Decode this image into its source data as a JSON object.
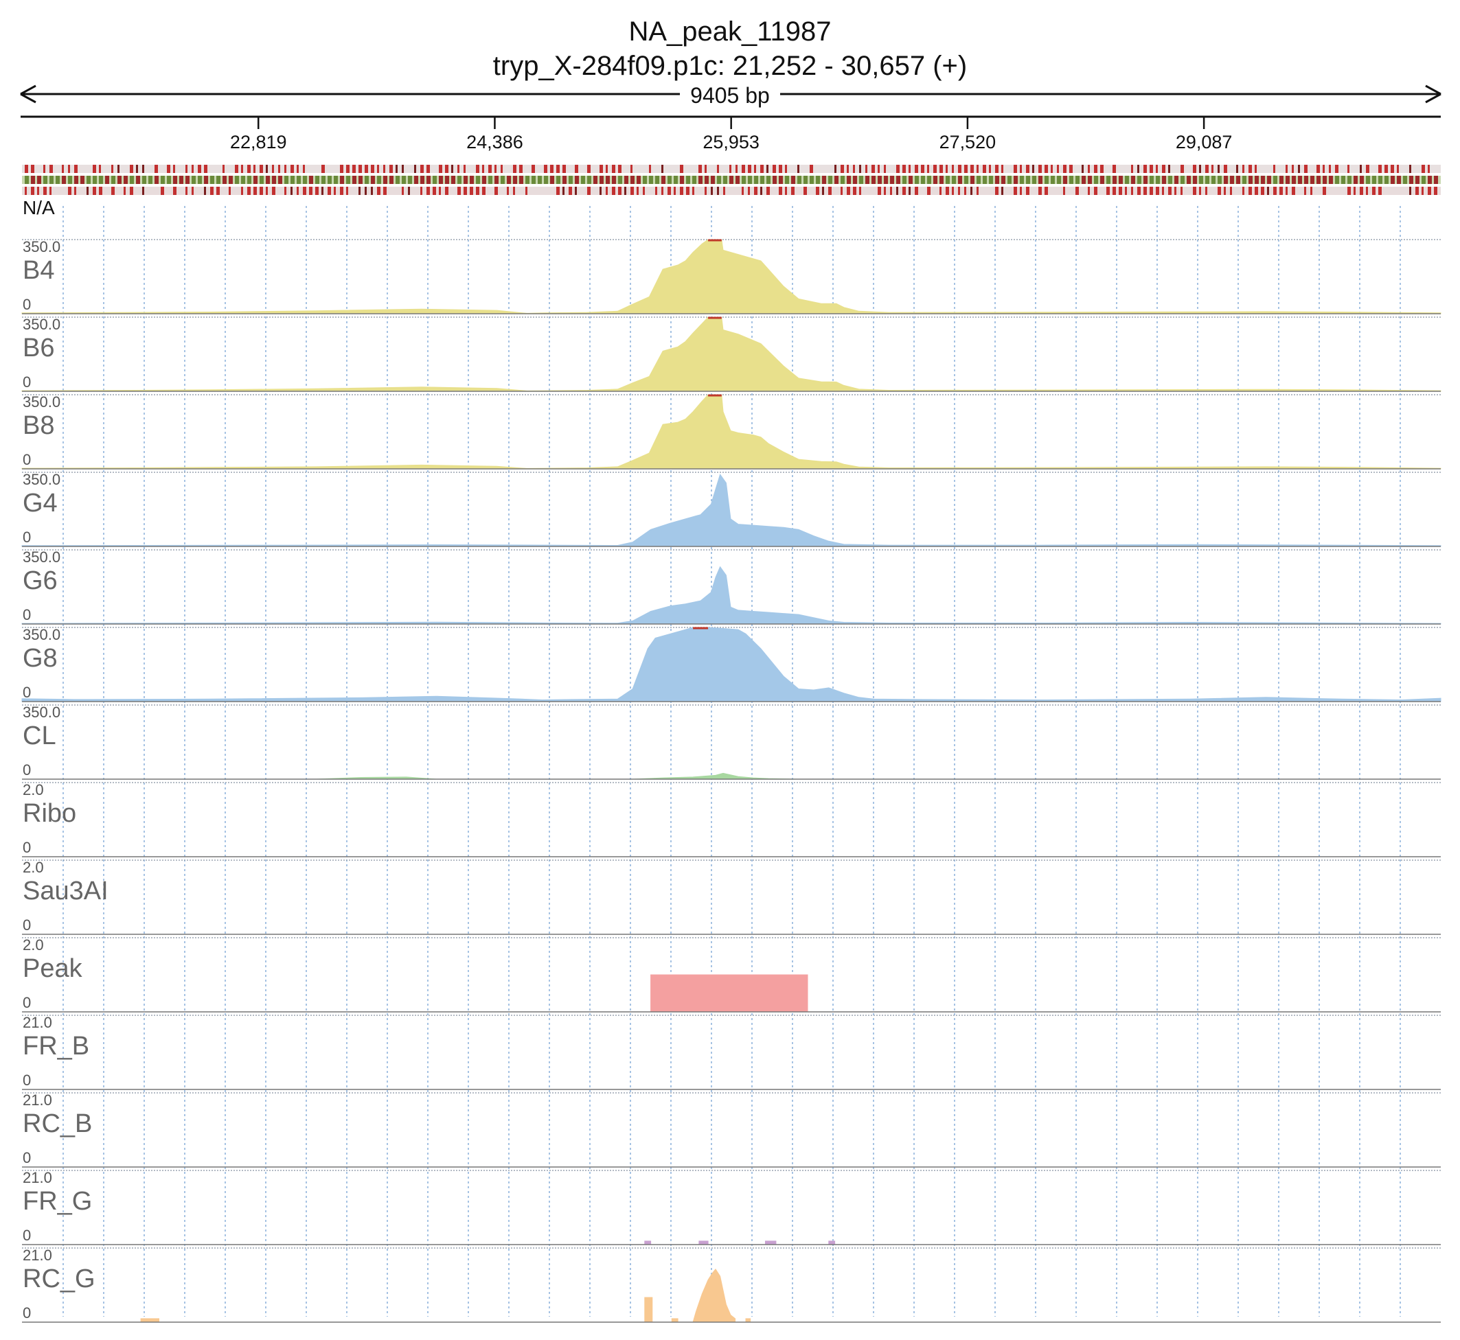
{
  "chart_data": {
    "type": "area",
    "title": "NA_peak_11987",
    "subtitle": "tryp_X-284f09.p1c: 21,252 - 30,657 (+)",
    "span_label": "9405 bp",
    "x_range": [
      21252,
      30657
    ],
    "x_ticks": [
      {
        "value": 22819,
        "label": "22,819"
      },
      {
        "value": 24386,
        "label": "24,386"
      },
      {
        "value": 25953,
        "label": "25,953"
      },
      {
        "value": 27520,
        "label": "27,520"
      },
      {
        "value": 29087,
        "label": "29,087"
      }
    ],
    "annotation_track_label": "N/A",
    "grid": true,
    "tracks": [
      {
        "name": "B4",
        "ymax_label": "350.0",
        "ymin_label": "0",
        "ylim": [
          0,
          350
        ],
        "color": "#e8e08c",
        "clip_color": "#c0392b",
        "x": [
          21252,
          22000,
          22500,
          23200,
          23900,
          24400,
          24600,
          24720,
          25000,
          25200,
          25300,
          25410,
          25500,
          25600,
          25650,
          25700,
          25760,
          25800,
          25890,
          25900,
          25950,
          26000,
          26050,
          26100,
          26150,
          26200,
          26300,
          26400,
          26550,
          26650,
          26700,
          26800,
          27000,
          28000,
          29500,
          30000,
          30657
        ],
        "y": [
          4,
          6,
          8,
          14,
          22,
          16,
          2,
          4,
          6,
          12,
          45,
          80,
          210,
          230,
          250,
          290,
          330,
          350,
          350,
          300,
          290,
          280,
          270,
          260,
          250,
          210,
          130,
          70,
          48,
          48,
          30,
          12,
          6,
          7,
          10,
          8,
          4
        ]
      },
      {
        "name": "B6",
        "ymax_label": "350.0",
        "ymin_label": "0",
        "ylim": [
          0,
          350
        ],
        "color": "#e8e08c",
        "clip_color": "#c0392b",
        "x": [
          21252,
          22000,
          22500,
          23200,
          23900,
          24400,
          24600,
          24720,
          25000,
          25200,
          25300,
          25410,
          25500,
          25600,
          25650,
          25700,
          25760,
          25800,
          25890,
          25900,
          25950,
          26000,
          26050,
          26100,
          26150,
          26200,
          26300,
          26400,
          26550,
          26650,
          26700,
          26800,
          27000,
          28000,
          29500,
          30000,
          30657
        ],
        "y": [
          3,
          5,
          7,
          12,
          20,
          14,
          2,
          3,
          5,
          10,
          40,
          70,
          190,
          210,
          235,
          275,
          320,
          350,
          350,
          290,
          280,
          270,
          255,
          240,
          225,
          190,
          120,
          62,
          45,
          44,
          28,
          10,
          5,
          6,
          9,
          7,
          3
        ]
      },
      {
        "name": "B8",
        "ymax_label": "350.0",
        "ymin_label": "0",
        "ylim": [
          0,
          350
        ],
        "color": "#e8e08c",
        "clip_color": "#c0392b",
        "x": [
          21252,
          22000,
          22500,
          23200,
          23900,
          24400,
          24600,
          24720,
          25000,
          25200,
          25300,
          25410,
          25500,
          25600,
          25650,
          25700,
          25760,
          25800,
          25890,
          25900,
          25950,
          26000,
          26050,
          26100,
          26150,
          26200,
          26300,
          26400,
          26550,
          26650,
          26700,
          26800,
          27000,
          28000,
          29500,
          30000,
          30657
        ],
        "y": [
          3,
          5,
          7,
          10,
          18,
          12,
          2,
          3,
          5,
          10,
          40,
          75,
          210,
          220,
          235,
          270,
          320,
          350,
          350,
          270,
          180,
          170,
          165,
          160,
          150,
          120,
          80,
          45,
          35,
          33,
          22,
          9,
          5,
          6,
          10,
          8,
          3
        ]
      },
      {
        "name": "G4",
        "ymax_label": "350.0",
        "ymin_label": "0",
        "ylim": [
          0,
          350
        ],
        "color": "#a4c8e8",
        "clip_color": "#c0392b",
        "x": [
          21252,
          22000,
          23000,
          24000,
          24800,
          25200,
          25300,
          25420,
          25550,
          25650,
          25750,
          25820,
          25850,
          25880,
          25920,
          25950,
          26000,
          26100,
          26200,
          26300,
          26400,
          26500,
          26600,
          26700,
          27000,
          28000,
          29000,
          30000,
          30657
        ],
        "y": [
          4,
          5,
          6,
          8,
          6,
          5,
          20,
          80,
          110,
          130,
          150,
          200,
          270,
          340,
          300,
          130,
          105,
          100,
          95,
          90,
          80,
          50,
          25,
          10,
          6,
          6,
          9,
          6,
          4
        ]
      },
      {
        "name": "G6",
        "ymax_label": "350.0",
        "ymin_label": "0",
        "ylim": [
          0,
          350
        ],
        "color": "#a4c8e8",
        "clip_color": "#c0392b",
        "x": [
          21252,
          22000,
          23000,
          24000,
          24800,
          25200,
          25300,
          25420,
          25550,
          25650,
          25750,
          25820,
          25850,
          25880,
          25920,
          25950,
          26000,
          26100,
          26200,
          26300,
          26400,
          26500,
          26600,
          26700,
          27000,
          28000,
          29000,
          30000,
          30657
        ],
        "y": [
          3,
          4,
          6,
          9,
          5,
          4,
          15,
          60,
          85,
          95,
          110,
          150,
          220,
          270,
          230,
          80,
          65,
          60,
          55,
          50,
          45,
          30,
          15,
          8,
          5,
          5,
          8,
          5,
          3
        ]
      },
      {
        "name": "G8",
        "ymax_label": "350.0",
        "ymin_label": "0",
        "ylim": [
          0,
          350
        ],
        "color": "#a4c8e8",
        "clip_color": "#c0392b",
        "x": [
          21252,
          21600,
          22500,
          23500,
          24000,
          24500,
          24700,
          24900,
          25200,
          25300,
          25400,
          25450,
          25600,
          25700,
          25800,
          25900,
          26000,
          26050,
          26150,
          26300,
          26400,
          26500,
          26600,
          26700,
          26800,
          26900,
          27200,
          28000,
          29000,
          29500,
          30000,
          30400,
          30657
        ],
        "y": [
          14,
          10,
          12,
          18,
          25,
          14,
          8,
          10,
          12,
          60,
          250,
          300,
          330,
          350,
          350,
          345,
          340,
          320,
          250,
          120,
          60,
          55,
          65,
          40,
          20,
          12,
          10,
          8,
          12,
          20,
          12,
          8,
          16
        ]
      },
      {
        "name": "CL",
        "ymax_label": "350.0",
        "ymin_label": "0",
        "ylim": [
          0,
          350
        ],
        "color": "#a8d8a0",
        "clip_color": "#c0392b",
        "x": [
          21252,
          23200,
          23500,
          23800,
          24000,
          25300,
          25500,
          25700,
          25850,
          25900,
          26000,
          26100,
          26200,
          26400,
          30657
        ],
        "y": [
          0,
          0,
          8,
          10,
          0,
          0,
          6,
          10,
          18,
          28,
          12,
          6,
          3,
          0,
          0
        ]
      },
      {
        "name": "Ribo",
        "ymax_label": "2.0",
        "ymin_label": "0",
        "ylim": [
          0,
          2
        ],
        "color": "#cccccc",
        "clip_color": "#c0392b",
        "x": [],
        "y": []
      },
      {
        "name": "Sau3AI",
        "ymax_label": "2.0",
        "ymin_label": "0",
        "ylim": [
          0,
          2
        ],
        "color": "#cccccc",
        "clip_color": "#c0392b",
        "x": [],
        "y": []
      },
      {
        "name": "Peak",
        "ymax_label": "2.0",
        "ymin_label": "0",
        "ylim": [
          0,
          2
        ],
        "color": "#f4a0a0",
        "clip_color": "#c0392b",
        "x": [
          25420,
          25420,
          26460,
          26460
        ],
        "y": [
          0,
          1,
          1,
          0
        ]
      },
      {
        "name": "FR_B",
        "ymax_label": "21.0",
        "ymin_label": "0",
        "ylim": [
          0,
          21
        ],
        "color": "#cccccc",
        "clip_color": "#c0392b",
        "x": [],
        "y": []
      },
      {
        "name": "RC_B",
        "ymax_label": "21.0",
        "ymin_label": "0",
        "ylim": [
          0,
          21
        ],
        "color": "#cccccc",
        "clip_color": "#c0392b",
        "x": [],
        "y": []
      },
      {
        "name": "FR_G",
        "ymax_label": "21.0",
        "ymin_label": "0",
        "ylim": [
          0,
          21
        ],
        "color": "#c8a0d0",
        "clip_color": "#c0392b",
        "x": [
          25380,
          25380,
          25420,
          25420,
          25740,
          25740,
          25800,
          25800,
          26180,
          26180,
          26250,
          26250,
          26600,
          26600,
          26640,
          26640
        ],
        "y": [
          0,
          1,
          1,
          0,
          0,
          1,
          1,
          0,
          0,
          1,
          1,
          0,
          0,
          1,
          1,
          0
        ]
      },
      {
        "name": "RC_G",
        "ymax_label": "21.0",
        "ymin_label": "0",
        "ylim": [
          0,
          21
        ],
        "color": "#f8c890",
        "clip_color": "#c0392b",
        "x": [
          22040,
          22040,
          22160,
          22160,
          25380,
          25380,
          25430,
          25430,
          25560,
          25560,
          25600,
          25600,
          25700,
          25720,
          25760,
          25800,
          25830,
          25850,
          25880,
          25900,
          25920,
          25950,
          25980,
          25980,
          26050,
          26050,
          26080,
          26080
        ],
        "y": [
          0,
          1,
          1,
          0,
          0,
          7,
          7,
          0,
          0,
          1,
          1,
          0,
          0,
          3,
          8,
          12,
          14,
          15,
          13,
          9,
          5,
          2,
          1,
          0,
          0,
          1,
          1,
          0
        ]
      }
    ]
  }
}
